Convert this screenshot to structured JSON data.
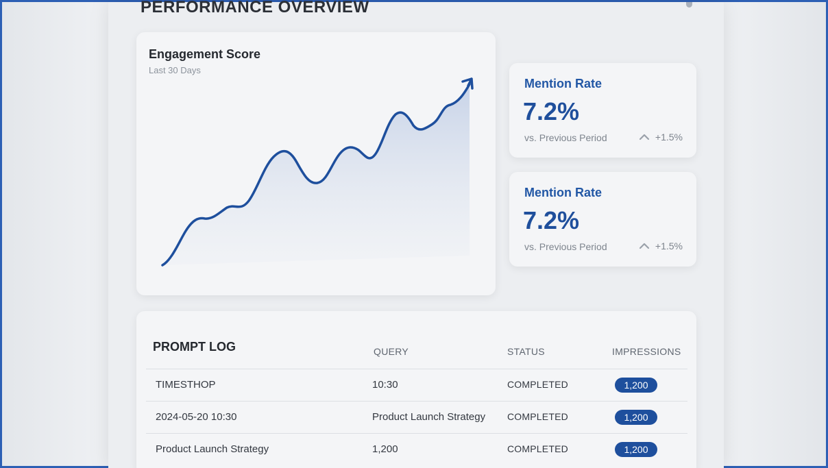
{
  "page": {
    "title": "PERFORMANCE OVERVIEW"
  },
  "engagement": {
    "title": "Engagement Score",
    "subtitle": "Last 30 Days",
    "line_color": "#1e4f9d",
    "chart_data": {
      "type": "area",
      "trend": "upward with oscillations",
      "values": [
        2,
        16,
        26,
        34,
        28,
        62,
        46,
        58,
        38,
        76,
        82,
        95
      ]
    }
  },
  "stats": [
    {
      "label": "Mention Rate",
      "value": "7.2%",
      "compare": "vs. Previous Period",
      "change": "+1.5%",
      "change_icon": "chevron-up-icon"
    },
    {
      "label": "Mention Rate",
      "value": "7.2%",
      "compare": "vs. Previous Period",
      "change": "+1.5%",
      "change_icon": "chevron-up-icon"
    }
  ],
  "prompt_log": {
    "title": "PROMPT LOG",
    "headers": {
      "query": "QUERY",
      "status": "STATUS",
      "impressions": "IMPRESSIONS"
    },
    "rows": [
      {
        "timestamp": "TIMESTHOP",
        "query": "10:30",
        "status": "COMPLETED",
        "impressions": "1,200"
      },
      {
        "timestamp": "2024-05-20 10:30",
        "query": "Product Launch Strategy",
        "status": "COMPLETED",
        "impressions": "1,200"
      },
      {
        "timestamp": "Product Launch Strategy",
        "query": "1,200",
        "status": "COMPLETED",
        "impressions": "1,200"
      }
    ]
  }
}
